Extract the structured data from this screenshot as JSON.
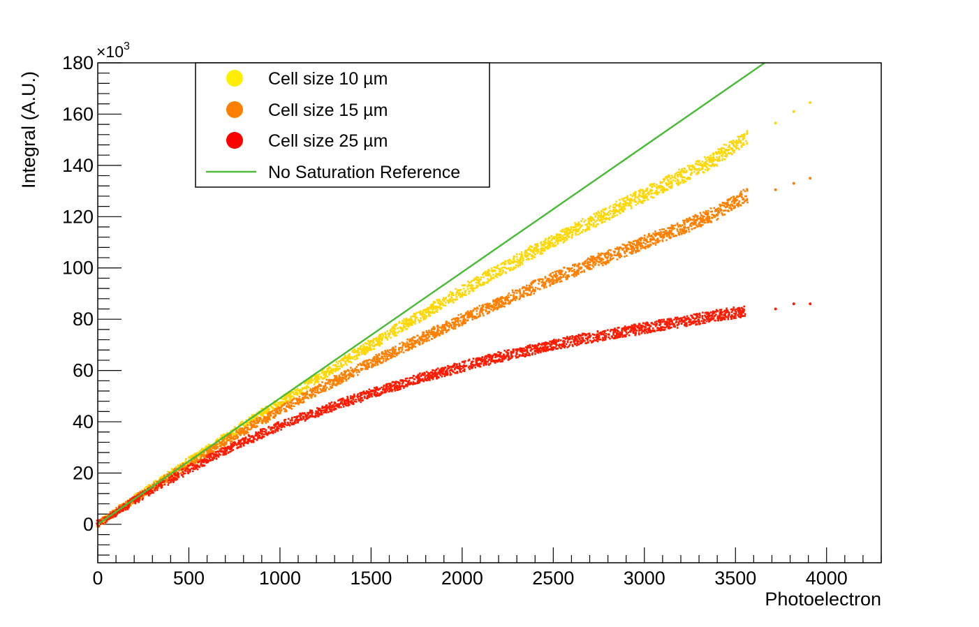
{
  "chart_data": {
    "type": "scatter",
    "title": "",
    "xlabel": "Photoelectron",
    "ylabel": "Integral (A.U.)",
    "y_multiplier_label": "×10",
    "y_multiplier_exponent": "3",
    "xlim": [
      0,
      4300
    ],
    "ylim": [
      -15,
      180
    ],
    "x_ticks": [
      0,
      500,
      1000,
      1500,
      2000,
      2500,
      3000,
      3500,
      4000
    ],
    "x_tick_labels": [
      "0",
      "500",
      "1000",
      "1500",
      "2000",
      "2500",
      "3000",
      "3500",
      "4000"
    ],
    "y_ticks": [
      0,
      20,
      40,
      60,
      80,
      100,
      120,
      140,
      160,
      180
    ],
    "y_tick_labels": [
      "0",
      "20",
      "40",
      "60",
      "80",
      "100",
      "120",
      "140",
      "160",
      "180"
    ],
    "grid": false,
    "legend_position": "top-left",
    "series": [
      {
        "name": "Cell size 10 µm",
        "color": "#ffd700",
        "marker": "dot",
        "x": [
          0,
          250,
          500,
          750,
          1000,
          1250,
          1500,
          1750,
          2000,
          2250,
          2500,
          2750,
          3000,
          3250,
          3400,
          3550,
          3720,
          3820,
          3910
        ],
        "y": [
          0,
          12.3,
          24.5,
          36.2,
          47.8,
          59.0,
          70.0,
          80.5,
          91.0,
          101.0,
          110.5,
          119.5,
          128.5,
          137.5,
          143.0,
          150.5,
          156.5,
          161.0,
          164.5
        ]
      },
      {
        "name": "Cell size 15 µm",
        "color": "#ff7f00",
        "marker": "dot",
        "x": [
          0,
          250,
          500,
          750,
          1000,
          1250,
          1500,
          1750,
          2000,
          2250,
          2500,
          2750,
          3000,
          3250,
          3400,
          3550,
          3720,
          3820,
          3910
        ],
        "y": [
          0,
          12.0,
          23.5,
          34.5,
          44.5,
          54.0,
          63.0,
          71.5,
          80.0,
          88.0,
          96.0,
          103.0,
          110.0,
          117.0,
          121.5,
          128.0,
          130.5,
          133.0,
          135.0
        ]
      },
      {
        "name": "Cell size 25 µm",
        "color": "#ff1a00",
        "marker": "dot",
        "x": [
          0,
          250,
          500,
          750,
          1000,
          1250,
          1500,
          1750,
          2000,
          2250,
          2500,
          2750,
          3000,
          3250,
          3400,
          3550,
          3720,
          3820,
          3910
        ],
        "y": [
          0,
          11.5,
          21.5,
          30.5,
          38.5,
          45.0,
          51.0,
          56.5,
          61.5,
          66.0,
          70.0,
          73.5,
          76.5,
          79.5,
          81.5,
          83.0,
          84.0,
          86.0,
          86.0
        ]
      },
      {
        "name": "No Saturation Reference",
        "color": "#4cbb3a",
        "marker": "line",
        "x": [
          0,
          3660
        ],
        "y": [
          0,
          180
        ]
      }
    ]
  }
}
